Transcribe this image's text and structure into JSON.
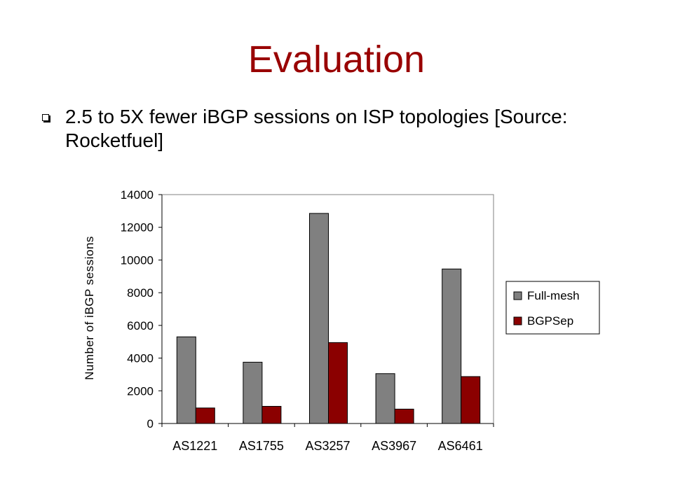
{
  "slide": {
    "title": "Evaluation",
    "bullet": "2.5 to 5X fewer iBGP sessions on ISP topologies [Source: Rocketfuel]"
  },
  "colors": {
    "title": "#990000",
    "full_mesh": "#808080",
    "bgpsep": "#8B0000"
  },
  "chart_data": {
    "type": "bar",
    "categories": [
      "AS1221",
      "AS1755",
      "AS3257",
      "AS3967",
      "AS6461"
    ],
    "series": [
      {
        "name": "Full-mesh",
        "values": [
          5300,
          3750,
          12850,
          3050,
          9450
        ]
      },
      {
        "name": "BGPSep",
        "values": [
          950,
          1050,
          4950,
          880,
          2870
        ]
      }
    ],
    "title": "",
    "xlabel": "",
    "ylabel": "Number of iBGP sessions",
    "ylim": [
      0,
      14000
    ],
    "yticks": [
      "0",
      "2000",
      "4000",
      "6000",
      "8000",
      "10000",
      "12000",
      "14000"
    ],
    "grid": false,
    "legend": "right"
  }
}
